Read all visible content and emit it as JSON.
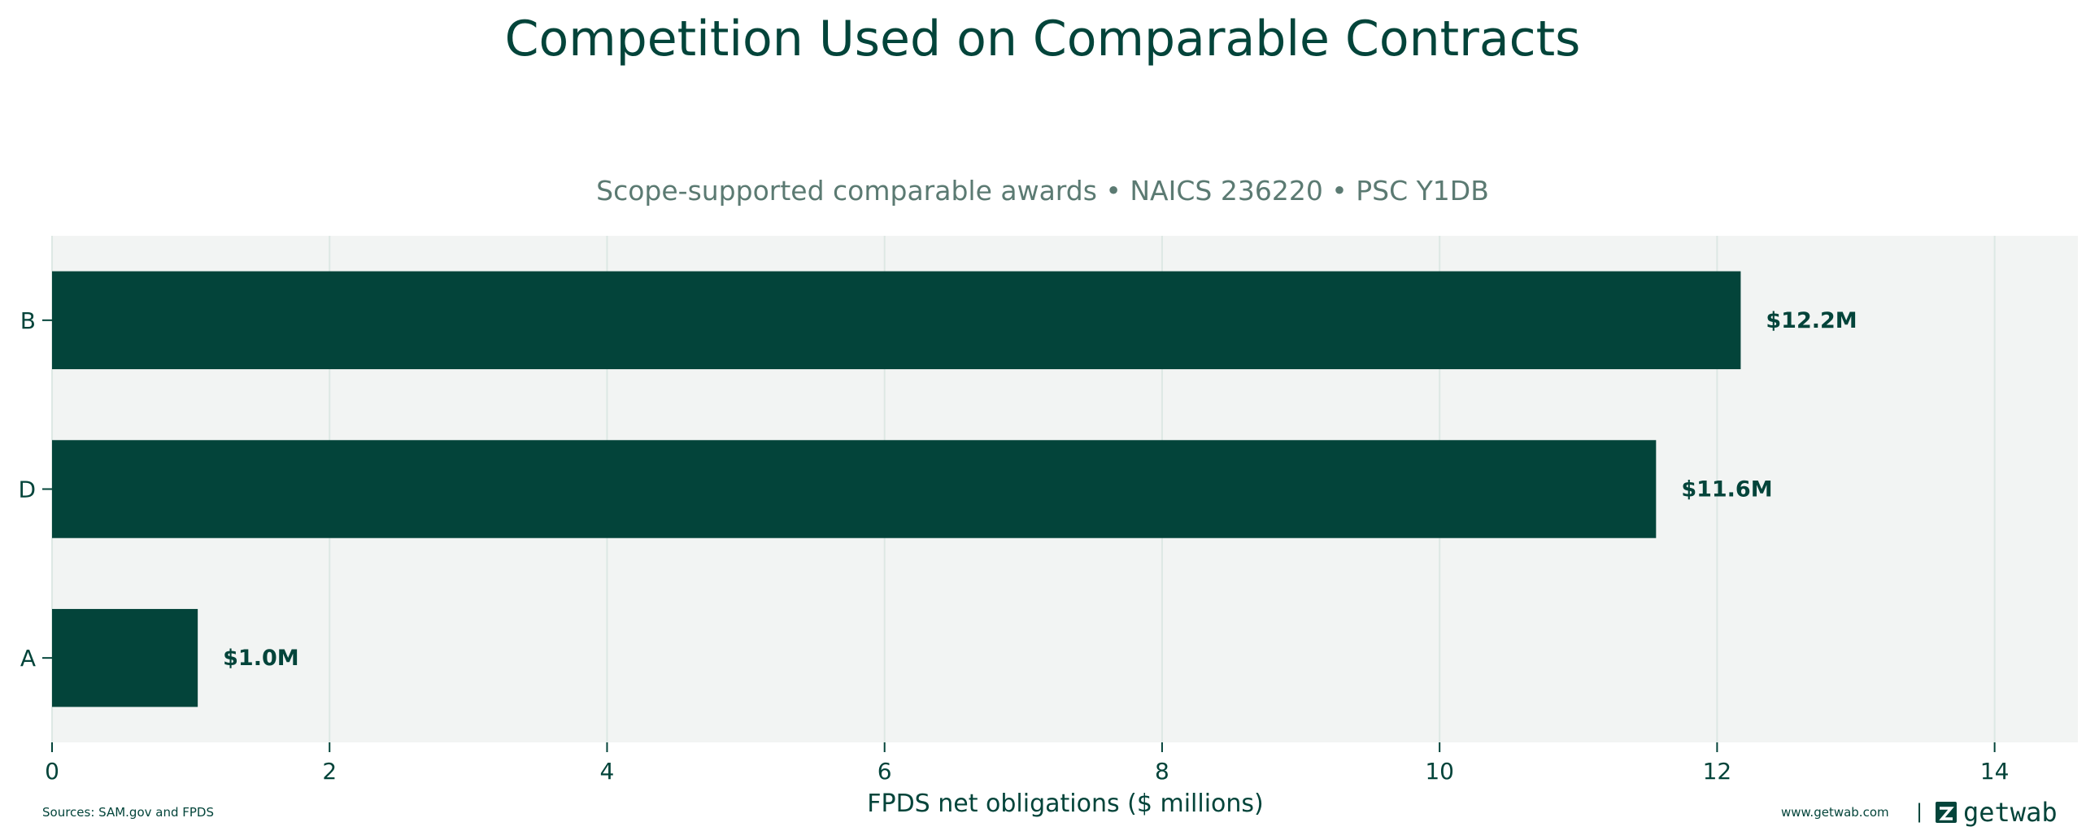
{
  "chart_data": {
    "type": "bar",
    "orientation": "horizontal",
    "title": "Competition Used on Comparable Contracts",
    "subtitle": "Scope-supported comparable awards • NAICS 236220 • PSC Y1DB",
    "xlabel": "FPDS net obligations ($ millions)",
    "ylabel": "",
    "categories": [
      "B",
      "D",
      "A"
    ],
    "values": [
      12.17,
      11.56,
      1.05
    ],
    "data_labels": [
      "$12.2M",
      "$11.6M",
      "$1.0M"
    ],
    "xlim": [
      0,
      14.6
    ],
    "xticks": [
      0,
      2,
      4,
      6,
      8,
      10,
      12,
      14
    ],
    "xtick_labels": [
      "0",
      "2",
      "4",
      "6",
      "8",
      "10",
      "12",
      "14"
    ],
    "grid": "vertical",
    "colors": {
      "bar": "#03443a",
      "plot_background": "#f2f4f3",
      "grid": "#dde8e4",
      "text": "#03443a",
      "subtitle": "#5b7a72"
    }
  },
  "footer": {
    "sources": "Sources: SAM.gov and FPDS",
    "website": "www.getwab.com",
    "separator": "|",
    "logo_text": "getwab",
    "logo_icon": "getwab-logo-icon"
  }
}
